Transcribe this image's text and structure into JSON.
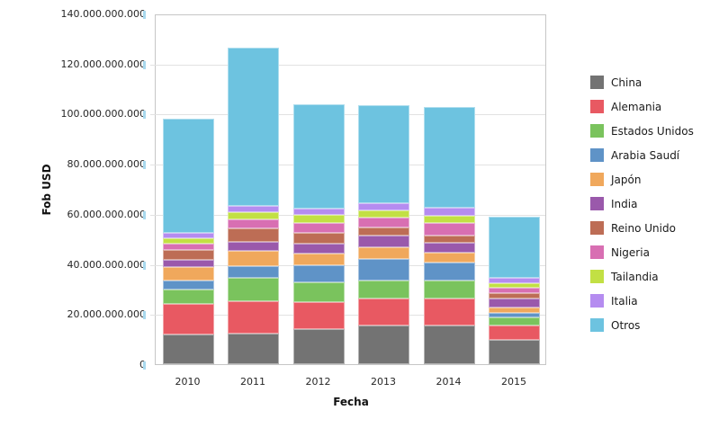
{
  "chart_data": {
    "type": "bar",
    "stacked": true,
    "title": "",
    "xlabel": "Fecha",
    "ylabel": "Fob USD",
    "unit": "USD",
    "grid": true,
    "legend_position": "right",
    "ylim_billions": [
      0,
      140
    ],
    "y_ticks": [
      {
        "value_billions": 0,
        "label": "0"
      },
      {
        "value_billions": 20,
        "label": "20.000.000.000"
      },
      {
        "value_billions": 40,
        "label": "40.000.000.000"
      },
      {
        "value_billions": 60,
        "label": "60.000.000.000"
      },
      {
        "value_billions": 80,
        "label": "80.000.000.000"
      },
      {
        "value_billions": 100,
        "label": "100.000.000.000"
      },
      {
        "value_billions": 120,
        "label": "120.000.000.000"
      },
      {
        "value_billions": 140,
        "label": "140.000.000.000"
      }
    ],
    "categories": [
      "2010",
      "2011",
      "2012",
      "2013",
      "2014",
      "2015"
    ],
    "series": [
      {
        "name": "China",
        "color": "#737373",
        "values_billions": [
          12.0,
          12.3,
          14.1,
          15.5,
          15.3,
          9.6
        ]
      },
      {
        "name": "Alemania",
        "color": "#e85962",
        "values_billions": [
          11.9,
          13.0,
          10.8,
          10.6,
          10.8,
          5.7
        ]
      },
      {
        "name": "Estados Unidos",
        "color": "#7ac35d",
        "values_billions": [
          5.8,
          9.3,
          7.8,
          7.4,
          7.4,
          3.4
        ]
      },
      {
        "name": "Arabia Saudí",
        "color": "#5f93c7",
        "values_billions": [
          3.8,
          4.7,
          6.8,
          8.4,
          7.2,
          1.7
        ]
      },
      {
        "name": "Japón",
        "color": "#f0a85c",
        "values_billions": [
          5.2,
          6.0,
          4.8,
          4.8,
          3.9,
          2.3
        ]
      },
      {
        "name": "India",
        "color": "#9a59ab",
        "values_billions": [
          2.9,
          3.6,
          3.9,
          4.7,
          4.0,
          3.6
        ]
      },
      {
        "name": "Reino Unido",
        "color": "#bd6d55",
        "values_billions": [
          4.1,
          5.4,
          4.2,
          3.2,
          2.6,
          2.0
        ]
      },
      {
        "name": "Nigeria",
        "color": "#d86fb2",
        "values_billions": [
          2.4,
          3.6,
          3.9,
          4.0,
          5.1,
          2.3
        ]
      },
      {
        "name": "Tailandia",
        "color": "#c2e044",
        "values_billions": [
          2.2,
          2.8,
          3.3,
          2.8,
          3.0,
          1.7
        ]
      },
      {
        "name": "Italia",
        "color": "#b58cf0",
        "values_billions": [
          2.1,
          2.6,
          2.6,
          2.7,
          3.3,
          2.2
        ]
      },
      {
        "name": "Otros",
        "color": "#6dc3e0",
        "values_billions": [
          45.5,
          63.2,
          41.4,
          39.4,
          40.1,
          24.3
        ]
      }
    ],
    "stack_order_bottom_to_top": [
      "China",
      "Alemania",
      "Estados Unidos",
      "Arabia Saudí",
      "Japón",
      "India",
      "Reino Unido",
      "Nigeria",
      "Tailandia",
      "Italia",
      "Otros"
    ]
  },
  "colors": {
    "plot_border": "#c6c6c6",
    "gridline": "#e2e2e2",
    "tick_dash": "#a9d9ee",
    "text": "#1a1a1a",
    "background": "#ffffff"
  }
}
